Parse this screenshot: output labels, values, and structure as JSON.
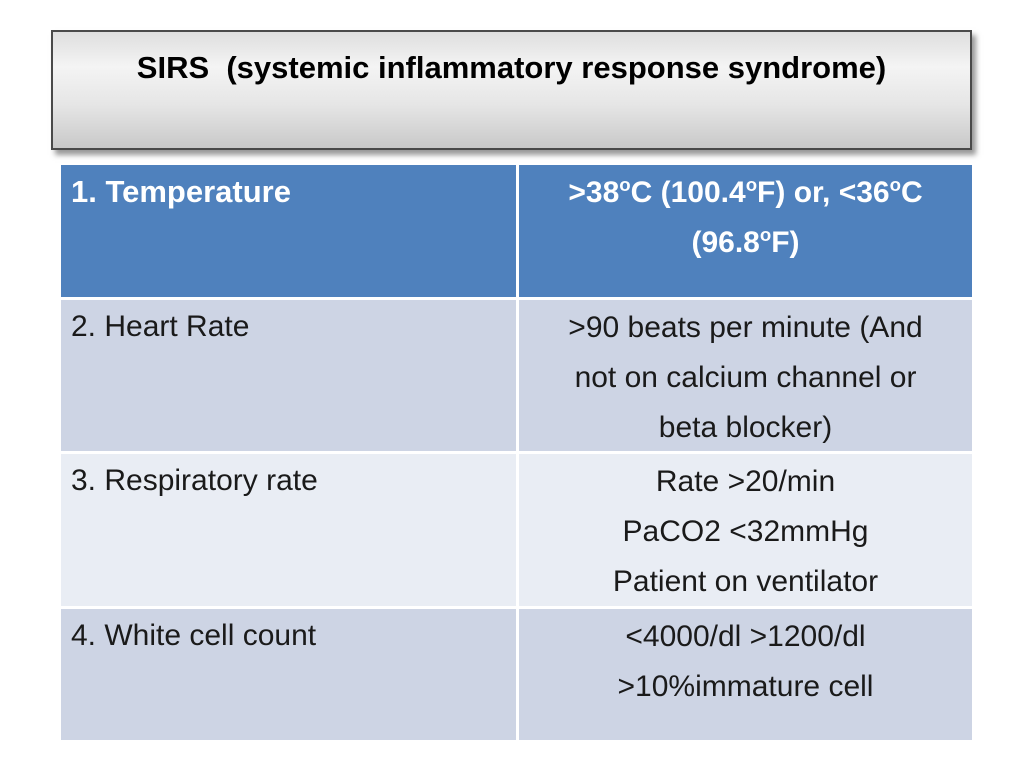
{
  "slide": {
    "title": "SIRS  (systemic inflammatory response syndrome)",
    "colors": {
      "header_row_blue": "#4f81bd",
      "band_dark": "#cdd4e4",
      "band_light": "#e9edf4",
      "header_text": "#ffffff",
      "body_text": "#1a1a1a",
      "title_border": "#4a4a4a",
      "gridline": "#ffffff",
      "background": "#ffffff"
    },
    "table": {
      "rows": [
        {
          "label": "1. Temperature",
          "parts": {
            "a": ">38",
            "s1": "o",
            "b": "C (100.4",
            "s2": "o",
            "c": "F) or, <36",
            "s3": "o",
            "d": "C",
            "e": "(96.8",
            "s4": "o",
            "f": "F)"
          }
        },
        {
          "label": "2. Heart Rate",
          "lines": [
            ">90 beats per minute (And",
            "not on calcium channel or",
            "beta blocker)"
          ]
        },
        {
          "label": "3. Respiratory rate",
          "lines": [
            "Rate >20/min",
            "PaCO2 <32mmHg",
            "Patient on ventilator"
          ]
        },
        {
          "label": "4. White cell count",
          "lines": [
            "<4000/dl >1200/dl",
            ">10%immature cell"
          ]
        }
      ]
    }
  }
}
